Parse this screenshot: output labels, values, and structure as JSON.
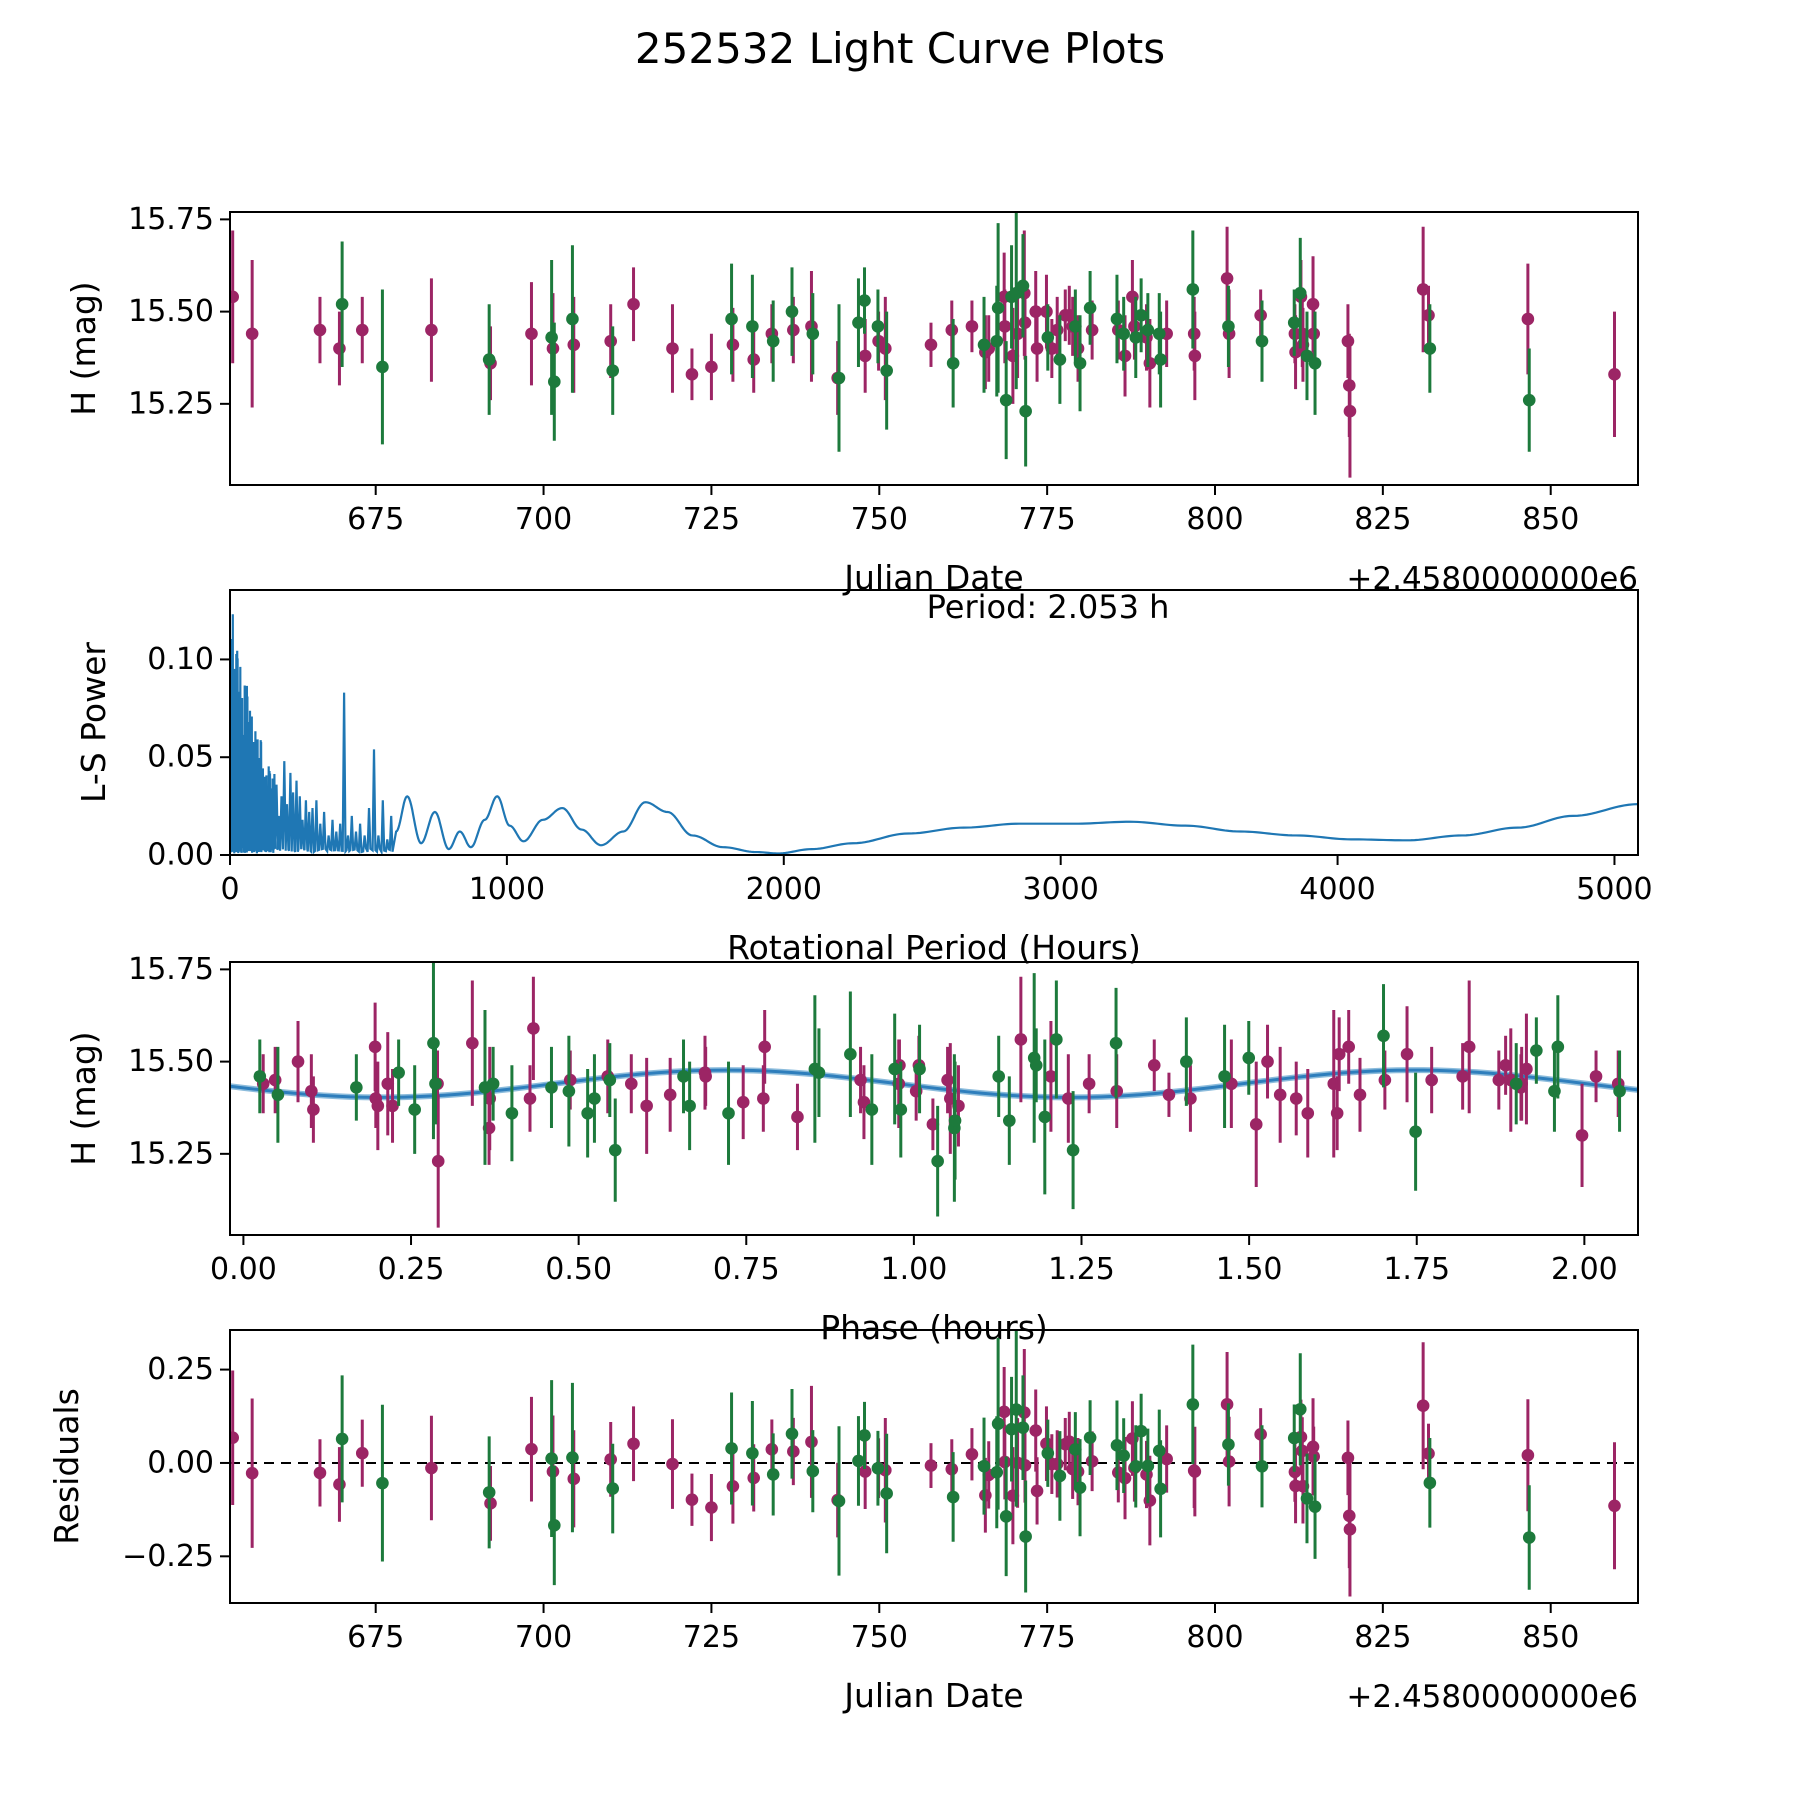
{
  "title": "252532 Light Curve Plots",
  "colors": {
    "purple_series": "#9c2565",
    "green_series": "#1d7a3c",
    "periodogram_line": "#1f77b4",
    "fit_line": "#2e7ebc",
    "fit_line_under": "#8cbcdc",
    "axis": "#000000",
    "background": "#ffffff"
  },
  "panels": {
    "lightcurve": {
      "ylabel": "H (mag)",
      "xlabel": "Julian Date",
      "x_offset_label": "+2.4580000000e6",
      "xlim": [
        653.3,
        863.0
      ],
      "ylim": [
        15.03,
        15.77
      ],
      "xticks": [
        {
          "v": 675,
          "l": "675"
        },
        {
          "v": 700,
          "l": "700"
        },
        {
          "v": 725,
          "l": "725"
        },
        {
          "v": 750,
          "l": "750"
        },
        {
          "v": 775,
          "l": "775"
        },
        {
          "v": 800,
          "l": "800"
        },
        {
          "v": 825,
          "l": "825"
        },
        {
          "v": 850,
          "l": "850"
        }
      ],
      "yticks": [
        {
          "v": 15.25,
          "l": "15.25"
        },
        {
          "v": 15.5,
          "l": "15.50"
        },
        {
          "v": 15.75,
          "l": "15.75"
        }
      ]
    },
    "periodogram": {
      "ylabel": "L-S Power",
      "xlabel": "Rotational Period (Hours)",
      "annotation": "Period: 2.053 h",
      "xlim": [
        0,
        5085
      ],
      "ylim": [
        0,
        0.1355
      ],
      "xticks": [
        {
          "v": 0,
          "l": "0"
        },
        {
          "v": 1000,
          "l": "1000"
        },
        {
          "v": 2000,
          "l": "2000"
        },
        {
          "v": 3000,
          "l": "3000"
        },
        {
          "v": 4000,
          "l": "4000"
        },
        {
          "v": 5000,
          "l": "5000"
        }
      ],
      "yticks": [
        {
          "v": 0.0,
          "l": "0.00"
        },
        {
          "v": 0.05,
          "l": "0.05"
        },
        {
          "v": 0.1,
          "l": "0.10"
        }
      ]
    },
    "phase": {
      "ylabel": "H (mag)",
      "xlabel": "Phase (hours)",
      "xlim": [
        -0.02,
        2.08
      ],
      "ylim": [
        15.03,
        15.77
      ],
      "xticks": [
        {
          "v": 0.0,
          "l": "0.00"
        },
        {
          "v": 0.25,
          "l": "0.25"
        },
        {
          "v": 0.5,
          "l": "0.50"
        },
        {
          "v": 0.75,
          "l": "0.75"
        },
        {
          "v": 1.0,
          "l": "1.00"
        },
        {
          "v": 1.25,
          "l": "1.25"
        },
        {
          "v": 1.5,
          "l": "1.50"
        },
        {
          "v": 1.75,
          "l": "1.75"
        },
        {
          "v": 2.0,
          "l": "2.00"
        }
      ],
      "yticks": [
        {
          "v": 15.25,
          "l": "15.25"
        },
        {
          "v": 15.5,
          "l": "15.50"
        },
        {
          "v": 15.75,
          "l": "15.75"
        }
      ]
    },
    "residuals": {
      "ylabel": "Residuals",
      "xlabel": "Julian Date",
      "x_offset_label": "+2.4580000000e6",
      "xlim": [
        653.3,
        863.0
      ],
      "ylim": [
        -0.375,
        0.356
      ],
      "xticks": [
        {
          "v": 675,
          "l": "675"
        },
        {
          "v": 700,
          "l": "700"
        },
        {
          "v": 725,
          "l": "725"
        },
        {
          "v": 750,
          "l": "750"
        },
        {
          "v": 775,
          "l": "775"
        },
        {
          "v": 800,
          "l": "800"
        },
        {
          "v": 825,
          "l": "825"
        },
        {
          "v": 850,
          "l": "850"
        }
      ],
      "yticks": [
        {
          "v": -0.25,
          "l": "−0.25"
        },
        {
          "v": 0.0,
          "l": "0.00"
        },
        {
          "v": 0.25,
          "l": "0.25"
        }
      ]
    }
  },
  "chart_data": {
    "type": "multi-panel light curve",
    "target": "252532",
    "period_hours": 2.053,
    "fit": {
      "mean_mag": 15.44,
      "amplitude_mag": 0.037,
      "harmonic_period_hours": 1.0265,
      "phase_of_max_hours": 0.72,
      "fold_period_days": 0.08554166
    },
    "observations": {
      "x_units": "Julian Date - 2458000",
      "y_units": "H (mag)",
      "series": [
        {
          "name": "purple",
          "points": [
            [
              653.7,
              15.54,
              0.18
            ],
            [
              656.6,
              15.44,
              0.2
            ],
            [
              666.7,
              15.45,
              0.09
            ],
            [
              669.6,
              15.4,
              0.1
            ],
            [
              673.0,
              15.45,
              0.09
            ],
            [
              683.3,
              15.45,
              0.14
            ],
            [
              692.1,
              15.36,
              0.1
            ],
            [
              698.2,
              15.44,
              0.14
            ],
            [
              701.4,
              15.4,
              0.15
            ],
            [
              704.5,
              15.41,
              0.13
            ],
            [
              710.0,
              15.42,
              0.1
            ],
            [
              713.4,
              15.52,
              0.1
            ],
            [
              719.2,
              15.4,
              0.12
            ],
            [
              722.1,
              15.33,
              0.07
            ],
            [
              725.0,
              15.35,
              0.09
            ],
            [
              728.2,
              15.41,
              0.1
            ],
            [
              731.3,
              15.37,
              0.09
            ],
            [
              734.0,
              15.44,
              0.08
            ],
            [
              737.2,
              15.45,
              0.09
            ],
            [
              739.9,
              15.46,
              0.15
            ],
            [
              743.8,
              15.32,
              0.1
            ],
            [
              747.9,
              15.38,
              0.1
            ],
            [
              749.9,
              15.42,
              0.08
            ],
            [
              750.9,
              15.4,
              0.14
            ],
            [
              757.7,
              15.41,
              0.06
            ],
            [
              760.8,
              15.45,
              0.08
            ],
            [
              763.8,
              15.46,
              0.07
            ],
            [
              765.8,
              15.39,
              0.1
            ],
            [
              766.3,
              15.4,
              0.09
            ],
            [
              768.6,
              15.54,
              0.12
            ],
            [
              768.7,
              15.46,
              0.1
            ],
            [
              769.9,
              15.38,
              0.13
            ],
            [
              770.6,
              15.44,
              0.12
            ],
            [
              771.6,
              15.55,
              0.17
            ],
            [
              771.7,
              15.47,
              0.1
            ],
            [
              773.3,
              15.5,
              0.11
            ],
            [
              773.5,
              15.4,
              0.09
            ],
            [
              774.9,
              15.5,
              0.1
            ],
            [
              775.7,
              15.4,
              0.08
            ],
            [
              776.5,
              15.45,
              0.09
            ],
            [
              777.7,
              15.49,
              0.07
            ],
            [
              778.3,
              15.49,
              0.08
            ],
            [
              778.8,
              15.46,
              0.08
            ],
            [
              779.6,
              15.4,
              0.09
            ],
            [
              781.7,
              15.45,
              0.08
            ],
            [
              785.6,
              15.45,
              0.08
            ],
            [
              786.6,
              15.38,
              0.11
            ],
            [
              787.7,
              15.54,
              0.1
            ],
            [
              788.0,
              15.46,
              0.09
            ],
            [
              789.8,
              15.43,
              0.09
            ],
            [
              790.3,
              15.36,
              0.12
            ],
            [
              792.8,
              15.44,
              0.09
            ],
            [
              796.9,
              15.44,
              0.1
            ],
            [
              797.0,
              15.38,
              0.12
            ],
            [
              801.8,
              15.59,
              0.14
            ],
            [
              802.1,
              15.44,
              0.12
            ],
            [
              806.8,
              15.49,
              0.07
            ],
            [
              811.9,
              15.44,
              0.08
            ],
            [
              812.0,
              15.39,
              0.1
            ],
            [
              812.8,
              15.54,
              0.1
            ],
            [
              813.0,
              15.44,
              0.09
            ],
            [
              813.1,
              15.41,
              0.1
            ],
            [
              814.6,
              15.52,
              0.13
            ],
            [
              814.7,
              15.44,
              0.08
            ],
            [
              819.8,
              15.42,
              0.1
            ],
            [
              820.0,
              15.3,
              0.14
            ],
            [
              820.1,
              15.23,
              0.18
            ],
            [
              831.0,
              15.56,
              0.17
            ],
            [
              831.8,
              15.49,
              0.08
            ],
            [
              846.6,
              15.48,
              0.15
            ],
            [
              859.5,
              15.33,
              0.17
            ]
          ]
        },
        {
          "name": "green",
          "points": [
            [
              670.0,
              15.52,
              0.17
            ],
            [
              676.0,
              15.35,
              0.21
            ],
            [
              691.9,
              15.37,
              0.15
            ],
            [
              701.2,
              15.43,
              0.21
            ],
            [
              701.6,
              15.31,
              0.16
            ],
            [
              704.3,
              15.48,
              0.2
            ],
            [
              710.3,
              15.34,
              0.12
            ],
            [
              728.0,
              15.48,
              0.15
            ],
            [
              731.1,
              15.46,
              0.14
            ],
            [
              734.2,
              15.42,
              0.11
            ],
            [
              737.0,
              15.5,
              0.12
            ],
            [
              740.1,
              15.44,
              0.11
            ],
            [
              744.0,
              15.32,
              0.2
            ],
            [
              746.9,
              15.47,
              0.12
            ],
            [
              747.8,
              15.53,
              0.09
            ],
            [
              749.8,
              15.46,
              0.1
            ],
            [
              751.1,
              15.34,
              0.16
            ],
            [
              761.0,
              15.36,
              0.12
            ],
            [
              765.6,
              15.41,
              0.13
            ],
            [
              767.5,
              15.42,
              0.15
            ],
            [
              767.7,
              15.51,
              0.23
            ],
            [
              768.9,
              15.26,
              0.16
            ],
            [
              769.7,
              15.54,
              0.14
            ],
            [
              770.4,
              15.55,
              0.26
            ],
            [
              771.4,
              15.57,
              0.14
            ],
            [
              771.8,
              15.23,
              0.15
            ],
            [
              775.1,
              15.43,
              0.09
            ],
            [
              776.9,
              15.37,
              0.12
            ],
            [
              779.2,
              15.46,
              0.1
            ],
            [
              779.9,
              15.36,
              0.13
            ],
            [
              781.4,
              15.51,
              0.1
            ],
            [
              785.4,
              15.48,
              0.12
            ],
            [
              786.4,
              15.44,
              0.1
            ],
            [
              788.2,
              15.43,
              0.11
            ],
            [
              789.0,
              15.49,
              0.1
            ],
            [
              790.0,
              15.45,
              0.1
            ],
            [
              791.7,
              15.44,
              0.11
            ],
            [
              791.9,
              15.37,
              0.13
            ],
            [
              796.7,
              15.56,
              0.16
            ],
            [
              802.0,
              15.46,
              0.11
            ],
            [
              807.0,
              15.42,
              0.11
            ],
            [
              811.8,
              15.47,
              0.09
            ],
            [
              812.7,
              15.55,
              0.15
            ],
            [
              813.7,
              15.38,
              0.12
            ],
            [
              814.9,
              15.36,
              0.14
            ],
            [
              832.0,
              15.4,
              0.12
            ],
            [
              846.8,
              15.26,
              0.14
            ]
          ]
        }
      ]
    },
    "periodogram": {
      "x_units": "Rotational Period (Hours)",
      "y_units": "L-S Power",
      "noise_region": {
        "x_max": 162,
        "envelope": "0.132*exp(-x/105)+0.013",
        "step_hours": 1.6,
        "seed": 42
      },
      "spikes": [
        [
          168,
          0.036
        ],
        [
          176,
          0.02
        ],
        [
          186,
          0.03
        ],
        [
          196,
          0.048
        ],
        [
          206,
          0.026
        ],
        [
          218,
          0.042
        ],
        [
          228,
          0.032
        ],
        [
          240,
          0.038
        ],
        [
          252,
          0.03
        ],
        [
          262,
          0.018
        ],
        [
          274,
          0.028
        ],
        [
          286,
          0.022
        ],
        [
          298,
          0.024
        ],
        [
          312,
          0.028
        ],
        [
          326,
          0.016
        ],
        [
          340,
          0.022
        ],
        [
          356,
          0.01
        ],
        [
          370,
          0.018
        ],
        [
          384,
          0.012
        ],
        [
          398,
          0.016
        ],
        [
          412,
          0.083
        ],
        [
          426,
          0.01
        ],
        [
          440,
          0.02
        ],
        [
          455,
          0.012
        ],
        [
          470,
          0.016
        ],
        [
          486,
          0.01
        ],
        [
          502,
          0.024
        ],
        [
          520,
          0.054
        ],
        [
          536,
          0.01
        ],
        [
          552,
          0.028
        ],
        [
          568,
          0.008
        ],
        [
          582,
          0.02
        ]
      ],
      "smooth_anchors": [
        [
          600,
          0.012
        ],
        [
          640,
          0.03
        ],
        [
          690,
          0.006
        ],
        [
          740,
          0.022
        ],
        [
          790,
          0.003
        ],
        [
          830,
          0.012
        ],
        [
          870,
          0.004
        ],
        [
          920,
          0.018
        ],
        [
          965,
          0.03
        ],
        [
          1010,
          0.015
        ],
        [
          1060,
          0.007
        ],
        [
          1130,
          0.018
        ],
        [
          1200,
          0.024
        ],
        [
          1270,
          0.013
        ],
        [
          1340,
          0.005
        ],
        [
          1420,
          0.012
        ],
        [
          1500,
          0.027
        ],
        [
          1580,
          0.022
        ],
        [
          1670,
          0.01
        ],
        [
          1780,
          0.004
        ],
        [
          1900,
          0.0015
        ],
        [
          1980,
          0.0008
        ],
        [
          2100,
          0.003
        ],
        [
          2250,
          0.006
        ],
        [
          2450,
          0.011
        ],
        [
          2650,
          0.014
        ],
        [
          2850,
          0.016
        ],
        [
          3050,
          0.016
        ],
        [
          3250,
          0.017
        ],
        [
          3450,
          0.015
        ],
        [
          3650,
          0.012
        ],
        [
          3850,
          0.01
        ],
        [
          4050,
          0.008
        ],
        [
          4250,
          0.0075
        ],
        [
          4450,
          0.01
        ],
        [
          4650,
          0.014
        ],
        [
          4850,
          0.02
        ],
        [
          5085,
          0.026
        ]
      ]
    }
  }
}
